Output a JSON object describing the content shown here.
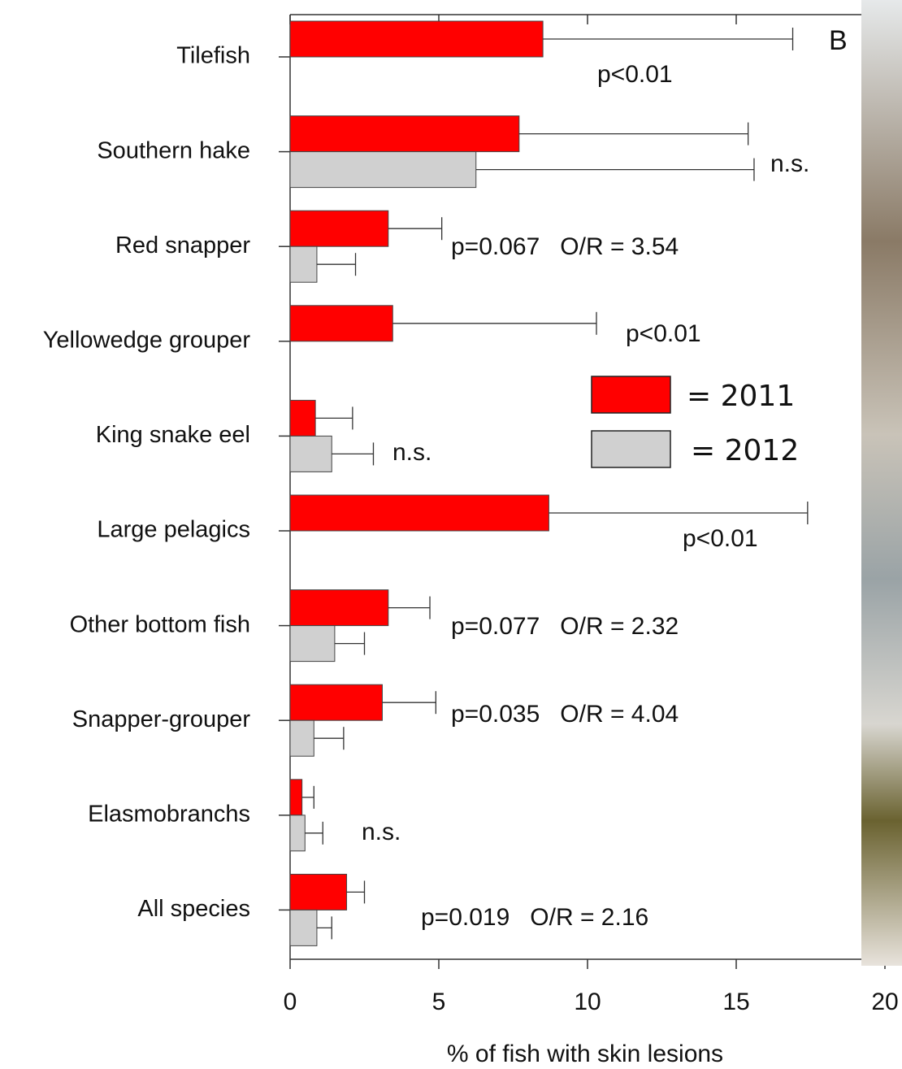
{
  "chart_data": {
    "type": "bar",
    "orientation": "horizontal",
    "panel_label": "B",
    "x_label": "% of fish with skin lesions",
    "categories": [
      "Tilefish",
      "Southern hake",
      "Red snapper",
      "Yellowedge grouper",
      "King snake eel",
      "Large pelagics",
      "Other bottom fish",
      "Snapper-grouper",
      "Elasmobranchs",
      "All species"
    ],
    "series": [
      {
        "name": "= 2011",
        "color": "#ff0000",
        "values": [
          8.5,
          7.7,
          3.3,
          3.45,
          0.85,
          8.7,
          3.3,
          3.1,
          0.4,
          1.9
        ],
        "errors": [
          8.4,
          7.7,
          1.8,
          6.85,
          1.25,
          8.7,
          1.4,
          1.8,
          0.4,
          0.6
        ]
      },
      {
        "name": "= 2012",
        "color": "#d0d0d0",
        "values": [
          null,
          6.25,
          0.9,
          null,
          1.4,
          null,
          1.5,
          0.8,
          0.5,
          0.9
        ],
        "errors": [
          null,
          9.35,
          1.3,
          null,
          1.4,
          null,
          1.0,
          1.0,
          0.6,
          0.5
        ]
      }
    ],
    "annotations": [
      "p<0.01",
      "n.s.",
      "p=0.067   O/R = 3.54",
      "p<0.01",
      "n.s.",
      "p<0.01",
      "p=0.077   O/R = 2.32",
      "p=0.035   O/R = 4.04",
      "n.s.",
      "p=0.019   O/R = 2.16"
    ],
    "xlim": [
      0,
      20
    ],
    "xticks": [
      0,
      5,
      10,
      15,
      20
    ]
  }
}
